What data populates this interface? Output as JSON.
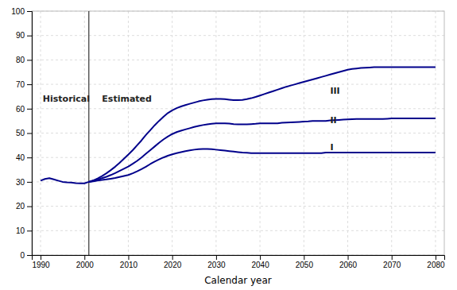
{
  "chart_data": {
    "type": "line",
    "xlabel": "Calendar year",
    "xlim": [
      1988,
      2082
    ],
    "ylim": [
      0,
      100
    ],
    "xticks": [
      1990,
      2000,
      2010,
      2020,
      2030,
      2040,
      2050,
      2060,
      2070,
      2080
    ],
    "yticks": [
      0,
      10,
      20,
      30,
      40,
      50,
      60,
      70,
      80,
      90,
      100
    ],
    "grid": true,
    "vline": 2001,
    "series": [
      {
        "color": "#00008B",
        "x": [
          1990,
          1991,
          1992,
          1993,
          1994,
          1995,
          1996,
          1997,
          1998,
          1999,
          2000,
          2001
        ],
        "values": [
          30.5,
          31.2,
          31.5,
          31.0,
          30.5,
          30.0,
          29.8,
          29.7,
          29.5,
          29.4,
          29.4,
          30.0
        ]
      },
      {
        "color": "#00008B",
        "x": [
          2001,
          2002,
          2003,
          2004,
          2005,
          2006,
          2007,
          2008,
          2009,
          2010,
          2011,
          2012,
          2013,
          2014,
          2015,
          2016,
          2017,
          2018,
          2019,
          2020,
          2021,
          2022,
          2023,
          2024,
          2025,
          2026,
          2027,
          2028,
          2029,
          2030,
          2031,
          2032,
          2033,
          2034,
          2035,
          2036,
          2037,
          2038,
          2039,
          2040,
          2041,
          2042,
          2043,
          2044,
          2045,
          2046,
          2047,
          2048,
          2049,
          2050,
          2051,
          2052,
          2053,
          2054,
          2055,
          2056,
          2057,
          2058,
          2059,
          2060,
          2061,
          2062,
          2063,
          2064,
          2065,
          2066,
          2067,
          2068,
          2069,
          2070,
          2071,
          2072,
          2073,
          2074,
          2075,
          2076,
          2077,
          2078,
          2079,
          2080
        ],
        "values": [
          30.0,
          30.2,
          30.5,
          30.8,
          31.0,
          31.3,
          31.6,
          32.0,
          32.4,
          32.8,
          33.5,
          34.3,
          35.2,
          36.2,
          37.3,
          38.3,
          39.2,
          40.0,
          40.7,
          41.3,
          41.8,
          42.2,
          42.6,
          42.9,
          43.2,
          43.4,
          43.5,
          43.5,
          43.4,
          43.2,
          43.0,
          42.8,
          42.6,
          42.4,
          42.2,
          42.0,
          41.9,
          41.8,
          41.8,
          41.8,
          41.8,
          41.8,
          41.8,
          41.8,
          41.8,
          41.8,
          41.8,
          41.8,
          41.8,
          41.8,
          41.8,
          41.8,
          41.8,
          41.8,
          42.0,
          42.0,
          42.0,
          42.0,
          42.0,
          42.0,
          42.0,
          42.0,
          42.0,
          42.0,
          42.0,
          42.0,
          42.0,
          42.0,
          42.0,
          42.0,
          42.0,
          42.0,
          42.0,
          42.0,
          42.0,
          42.0,
          42.0,
          42.0,
          42.0,
          42.0
        ]
      },
      {
        "color": "#00008B",
        "x": [
          2001,
          2002,
          2003,
          2004,
          2005,
          2006,
          2007,
          2008,
          2009,
          2010,
          2011,
          2012,
          2013,
          2014,
          2015,
          2016,
          2017,
          2018,
          2019,
          2020,
          2021,
          2022,
          2023,
          2024,
          2025,
          2026,
          2027,
          2028,
          2029,
          2030,
          2031,
          2032,
          2033,
          2034,
          2035,
          2036,
          2037,
          2038,
          2039,
          2040,
          2041,
          2042,
          2043,
          2044,
          2045,
          2046,
          2047,
          2048,
          2049,
          2050,
          2051,
          2052,
          2053,
          2054,
          2055,
          2056,
          2057,
          2058,
          2059,
          2060,
          2061,
          2062,
          2063,
          2064,
          2065,
          2066,
          2067,
          2068,
          2069,
          2070,
          2071,
          2072,
          2073,
          2074,
          2075,
          2076,
          2077,
          2078,
          2079,
          2080
        ],
        "values": [
          30.0,
          30.4,
          30.9,
          31.5,
          32.1,
          32.8,
          33.6,
          34.5,
          35.4,
          36.3,
          37.4,
          38.6,
          40.0,
          41.5,
          43.0,
          44.5,
          46.0,
          47.4,
          48.6,
          49.6,
          50.4,
          51.0,
          51.5,
          52.0,
          52.5,
          52.9,
          53.3,
          53.6,
          53.8,
          54.0,
          54.0,
          54.0,
          53.9,
          53.7,
          53.6,
          53.6,
          53.6,
          53.7,
          53.8,
          54.0,
          54.0,
          54.0,
          54.0,
          54.0,
          54.2,
          54.3,
          54.4,
          54.5,
          54.6,
          54.7,
          54.8,
          55.0,
          55.0,
          55.0,
          55.0,
          55.2,
          55.3,
          55.4,
          55.5,
          55.6,
          55.7,
          55.8,
          55.8,
          55.8,
          55.8,
          55.8,
          55.8,
          55.8,
          55.9,
          56.0,
          56.0,
          56.0,
          56.0,
          56.0,
          56.0,
          56.0,
          56.0,
          56.0,
          56.0,
          56.0
        ]
      },
      {
        "color": "#00008B",
        "x": [
          2001,
          2002,
          2003,
          2004,
          2005,
          2006,
          2007,
          2008,
          2009,
          2010,
          2011,
          2012,
          2013,
          2014,
          2015,
          2016,
          2017,
          2018,
          2019,
          2020,
          2021,
          2022,
          2023,
          2024,
          2025,
          2026,
          2027,
          2028,
          2029,
          2030,
          2031,
          2032,
          2033,
          2034,
          2035,
          2036,
          2037,
          2038,
          2039,
          2040,
          2041,
          2042,
          2043,
          2044,
          2045,
          2046,
          2047,
          2048,
          2049,
          2050,
          2051,
          2052,
          2053,
          2054,
          2055,
          2056,
          2057,
          2058,
          2059,
          2060,
          2061,
          2062,
          2063,
          2064,
          2065,
          2066,
          2067,
          2068,
          2069,
          2070,
          2071,
          2072,
          2073,
          2074,
          2075,
          2076,
          2077,
          2078,
          2079,
          2080
        ],
        "values": [
          30.0,
          30.6,
          31.4,
          32.4,
          33.5,
          34.8,
          36.2,
          37.8,
          39.5,
          41.2,
          43.0,
          45.0,
          47.0,
          49.2,
          51.2,
          53.2,
          55.0,
          56.7,
          58.2,
          59.3,
          60.2,
          60.9,
          61.5,
          62.0,
          62.5,
          63.0,
          63.4,
          63.7,
          63.9,
          64.0,
          64.0,
          63.9,
          63.7,
          63.5,
          63.5,
          63.6,
          63.9,
          64.3,
          64.8,
          65.4,
          66.0,
          66.6,
          67.2,
          67.8,
          68.4,
          69.0,
          69.5,
          70.0,
          70.5,
          71.0,
          71.5,
          72.0,
          72.5,
          73.0,
          73.5,
          74.0,
          74.5,
          75.0,
          75.5,
          76.0,
          76.3,
          76.5,
          76.7,
          76.8,
          76.9,
          77.0,
          77.0,
          77.0,
          77.0,
          77.0,
          77.0,
          77.0,
          77.0,
          77.0,
          77.0,
          77.0,
          77.0,
          77.0,
          77.0,
          77.0
        ]
      }
    ],
    "annotations": [
      {
        "text": "I",
        "x": 2056,
        "y": 43
      },
      {
        "text": "II",
        "x": 2056,
        "y": 54
      },
      {
        "text": "III",
        "x": 2056,
        "y": 66
      },
      {
        "text": "Historical",
        "x": 1990.5,
        "y": 63
      },
      {
        "text": "Estimated",
        "x": 2004,
        "y": 63
      }
    ]
  }
}
